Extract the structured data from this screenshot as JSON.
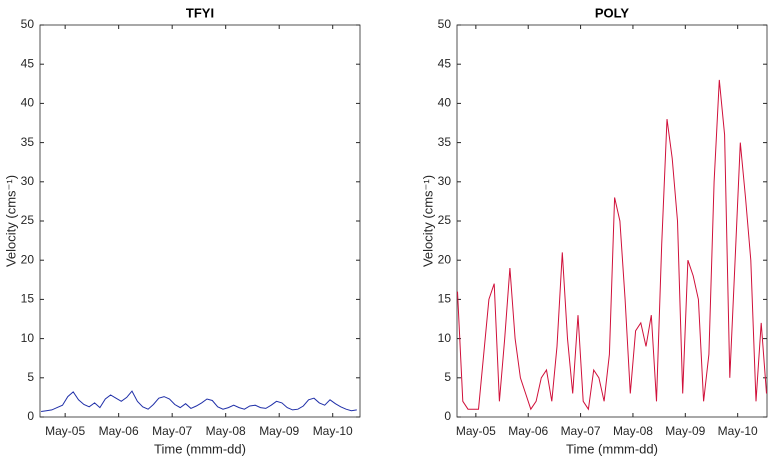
{
  "chart_data": [
    {
      "type": "line",
      "title": "TFYI",
      "xlabel": "Time (mmm-dd)",
      "ylabel": "Velocity (cms⁻¹)",
      "color": "#1f2fa8",
      "x": [
        4.55,
        4.65,
        4.75,
        4.85,
        4.95,
        5.05,
        5.15,
        5.25,
        5.35,
        5.45,
        5.55,
        5.65,
        5.75,
        5.85,
        5.95,
        6.05,
        6.15,
        6.25,
        6.35,
        6.45,
        6.55,
        6.65,
        6.75,
        6.85,
        6.95,
        7.05,
        7.15,
        7.25,
        7.35,
        7.45,
        7.55,
        7.65,
        7.75,
        7.85,
        7.95,
        8.05,
        8.15,
        8.25,
        8.35,
        8.45,
        8.55,
        8.65,
        8.75,
        8.85,
        8.95,
        9.05,
        9.15,
        9.25,
        9.35,
        9.45,
        9.55,
        9.65,
        9.75,
        9.85,
        9.95,
        10.05,
        10.15,
        10.25,
        10.35,
        10.45
      ],
      "values": [
        0.7,
        0.8,
        0.9,
        1.2,
        1.5,
        2.6,
        3.2,
        2.2,
        1.6,
        1.3,
        1.8,
        1.2,
        2.3,
        2.8,
        2.4,
        2.0,
        2.5,
        3.3,
        2.0,
        1.3,
        1.0,
        1.6,
        2.4,
        2.6,
        2.3,
        1.6,
        1.2,
        1.7,
        1.1,
        1.4,
        1.8,
        2.3,
        2.1,
        1.3,
        1.0,
        1.2,
        1.5,
        1.2,
        1.0,
        1.4,
        1.5,
        1.2,
        1.1,
        1.5,
        2.0,
        1.8,
        1.2,
        0.9,
        1.0,
        1.4,
        2.2,
        2.4,
        1.8,
        1.5,
        2.2,
        1.7,
        1.3,
        1.0,
        0.8,
        0.9
      ],
      "xlim": [
        4.53,
        10.51
      ],
      "xticks": [
        {
          "value": 5,
          "label": "May-05"
        },
        {
          "value": 6,
          "label": "May-06"
        },
        {
          "value": 7,
          "label": "May-07"
        },
        {
          "value": 8,
          "label": "May-08"
        },
        {
          "value": 9,
          "label": "May-09"
        },
        {
          "value": 10,
          "label": "May-10"
        }
      ],
      "ylim": [
        0,
        50
      ],
      "yticks": [
        0,
        5,
        10,
        15,
        20,
        25,
        30,
        35,
        40,
        45,
        50
      ]
    },
    {
      "type": "line",
      "title": "POLY",
      "xlabel": "Time (mmm-dd)",
      "ylabel": "Velocity (cms⁻¹)",
      "color": "#d0103a",
      "x": [
        4.65,
        4.75,
        4.85,
        4.95,
        5.05,
        5.15,
        5.25,
        5.35,
        5.45,
        5.55,
        5.65,
        5.75,
        5.85,
        5.95,
        6.05,
        6.15,
        6.25,
        6.35,
        6.45,
        6.55,
        6.65,
        6.75,
        6.85,
        6.95,
        7.05,
        7.15,
        7.25,
        7.35,
        7.45,
        7.55,
        7.65,
        7.75,
        7.85,
        7.95,
        8.05,
        8.15,
        8.25,
        8.35,
        8.45,
        8.55,
        8.65,
        8.75,
        8.85,
        8.95,
        9.05,
        9.15,
        9.25,
        9.35,
        9.45,
        9.55,
        9.65,
        9.75,
        9.85,
        9.95,
        10.05,
        10.15,
        10.25,
        10.35,
        10.45,
        10.55
      ],
      "values": [
        16,
        2,
        1,
        1,
        1,
        8,
        15,
        17,
        2,
        10,
        19,
        10,
        5,
        3,
        1,
        2,
        5,
        6,
        2,
        9,
        21,
        10,
        3,
        13,
        2,
        1,
        6,
        5,
        2,
        8,
        28,
        25,
        15,
        3,
        11,
        12,
        9,
        13,
        2,
        22,
        38,
        33,
        25,
        3,
        20,
        18,
        15,
        2,
        8,
        30,
        43,
        36,
        5,
        20,
        35,
        28,
        20,
        2,
        12,
        3
      ],
      "xlim": [
        4.64,
        10.56
      ],
      "xticks": [
        {
          "value": 5,
          "label": "May-05"
        },
        {
          "value": 6,
          "label": "May-06"
        },
        {
          "value": 7,
          "label": "May-07"
        },
        {
          "value": 8,
          "label": "May-08"
        },
        {
          "value": 9,
          "label": "May-09"
        },
        {
          "value": 10,
          "label": "May-10"
        }
      ],
      "ylim": [
        0,
        50
      ],
      "yticks": [
        0,
        5,
        10,
        15,
        20,
        25,
        30,
        35,
        40,
        45,
        50
      ]
    }
  ]
}
